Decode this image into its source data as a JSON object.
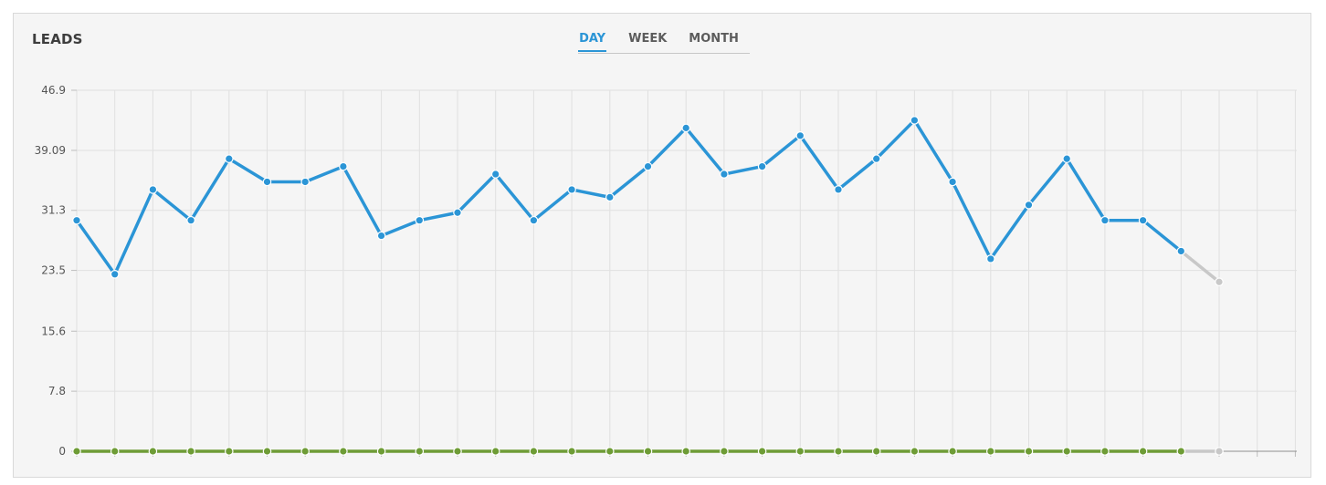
{
  "header": {
    "title": "LEADS",
    "tabs": [
      {
        "label": "DAY",
        "active": true
      },
      {
        "label": "WEEK",
        "active": false
      },
      {
        "label": "MONTH",
        "active": false
      }
    ]
  },
  "colors": {
    "primary_series": "#2b95d6",
    "secondary_series": "#6e9c36",
    "projection": "#c8c8c8",
    "grid": "#e0e0e0"
  },
  "chart_data": {
    "type": "line",
    "title": "",
    "xlabel": "",
    "ylabel": "",
    "ylim": [
      0,
      46.9
    ],
    "yticks": [
      "0",
      "7.8",
      "15.6",
      "23.5",
      "31.3",
      "39.09",
      "46.9"
    ],
    "ytick_values": [
      0,
      7.8,
      15.6,
      23.5,
      31.3,
      39.09,
      46.9
    ],
    "x_count": 32,
    "grid": true,
    "series": [
      {
        "values": [
          30,
          23,
          34,
          30,
          38,
          35,
          35,
          37,
          28,
          30,
          31,
          36,
          30,
          34,
          33,
          37,
          42,
          36,
          37,
          41,
          34,
          38,
          43,
          35,
          25,
          32,
          38,
          30,
          30,
          26
        ],
        "projection": 22,
        "color": "#2b95d6"
      },
      {
        "values": [
          0,
          0,
          0,
          0,
          0,
          0,
          0,
          0,
          0,
          0,
          0,
          0,
          0,
          0,
          0,
          0,
          0,
          0,
          0,
          0,
          0,
          0,
          0,
          0,
          0,
          0,
          0,
          0,
          0,
          0
        ],
        "projection": 0,
        "color": "#6e9c36"
      }
    ]
  }
}
